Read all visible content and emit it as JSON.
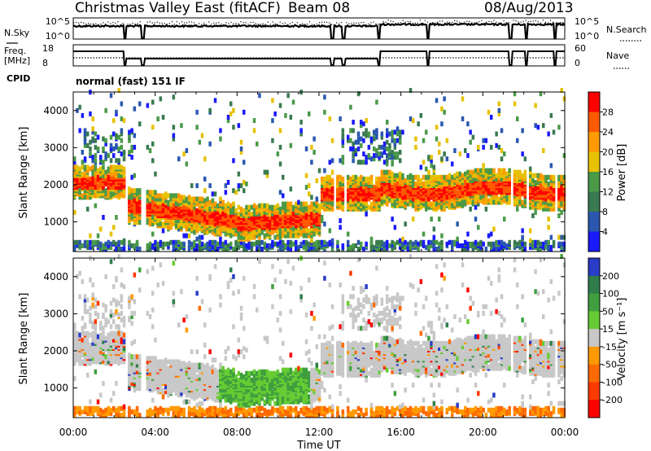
{
  "header": {
    "station": "Christmas Valley East (fitACF)",
    "beam": "Beam 08",
    "date": "08/Aug/2013"
  },
  "summary_panels": {
    "nsky_label": "N.Sky",
    "nsky_ticks": [
      "10^5",
      "10^0"
    ],
    "nsearch_label": "N.Search",
    "nsearch_ticks": [
      "10^5",
      "10^0"
    ],
    "freq_label": "Freq.",
    "freq_unit": "[MHz]",
    "freq_ticks": [
      "18",
      "8"
    ],
    "nave_label": "Nave",
    "nave_ticks": [
      "60",
      "0"
    ],
    "cpid_label": "CPID",
    "cpid_text": "normal (fast) 151 IF"
  },
  "chart_data": [
    {
      "type": "heatmap",
      "name": "power",
      "ylabel": "Slant Range [km]",
      "x_ticks": [
        "00:00",
        "04:00",
        "08:00",
        "12:00",
        "16:00",
        "20:00",
        "00:00"
      ],
      "y_ticks": [
        "1000",
        "2000",
        "3000",
        "4000"
      ],
      "y_range_km": [
        200,
        4500
      ],
      "colorbar_label": "Power [dB]",
      "colorbar_ticks": [
        "4",
        "8",
        "12",
        "16",
        "20",
        "24",
        "28"
      ],
      "colorbar_colors": [
        "#1a1aff",
        "#2b57b0",
        "#3a7a50",
        "#4a9a48",
        "#e6c200",
        "#ff9a00",
        "#ff5a00",
        "#ff0000"
      ]
    },
    {
      "type": "heatmap",
      "name": "velocity",
      "ylabel": "Slant Range [km]",
      "xlabel": "Time UT",
      "x_ticks": [
        "00:00",
        "04:00",
        "08:00",
        "12:00",
        "16:00",
        "20:00",
        "00:00"
      ],
      "y_ticks": [
        "1000",
        "2000",
        "3000",
        "4000"
      ],
      "y_range_km": [
        200,
        4500
      ],
      "colorbar_label": "Velocity [m s⁻¹]",
      "colorbar_ticks": [
        "200",
        "100",
        "50",
        "15",
        "-15",
        "-50",
        "-100",
        "-200"
      ],
      "colorbar_colors": [
        "#2a3cc8",
        "#2e7d4a",
        "#3f9f3f",
        "#66cc33",
        "#c8c8c8",
        "#ff9a00",
        "#ff6a00",
        "#ff3a00",
        "#ff0000"
      ]
    }
  ]
}
